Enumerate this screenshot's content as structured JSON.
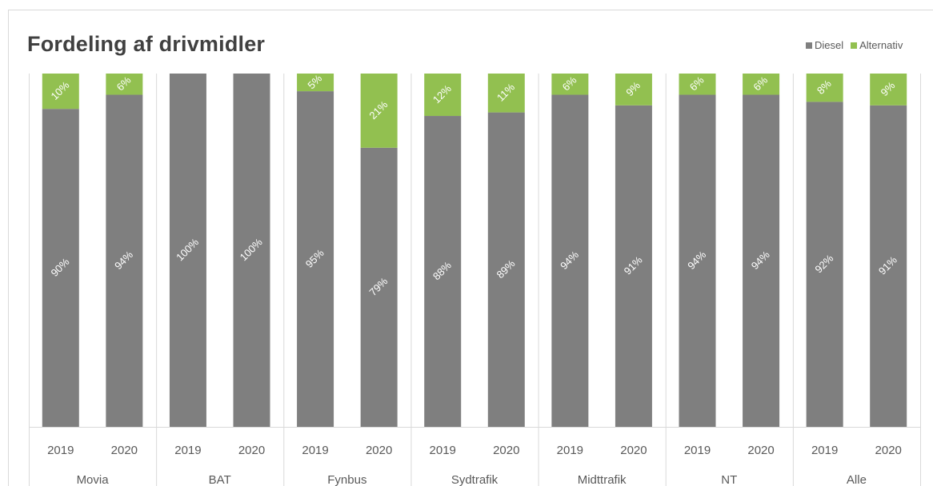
{
  "chart_data": {
    "type": "bar",
    "stacked": true,
    "title": "Fordeling af drivmidler",
    "xlabel": "",
    "ylabel": "",
    "ylim": [
      0,
      100
    ],
    "grid": false,
    "legend_position": "top-right",
    "groups": [
      "Movia",
      "BAT",
      "Fynbus",
      "Sydtrafik",
      "Midttrafik",
      "NT",
      "Alle"
    ],
    "categories": [
      "2019",
      "2020",
      "2019",
      "2020",
      "2019",
      "2020",
      "2019",
      "2020",
      "2019",
      "2020",
      "2019",
      "2020",
      "2019",
      "2020"
    ],
    "series": [
      {
        "name": "Diesel",
        "color": "#7f7f7f",
        "values": [
          90,
          94,
          100,
          100,
          95,
          79,
          88,
          89,
          94,
          91,
          94,
          94,
          92,
          91
        ],
        "labels": [
          "90%",
          "94%",
          "100%",
          "100%",
          "95%",
          "79%",
          "88%",
          "89%",
          "94%",
          "91%",
          "94%",
          "94%",
          "92%",
          "91%"
        ]
      },
      {
        "name": "Alternativ",
        "color": "#92c050",
        "values": [
          10,
          6,
          0,
          0,
          5,
          21,
          12,
          11,
          6,
          9,
          6,
          6,
          8,
          9
        ],
        "labels": [
          "10%",
          "6%",
          "",
          "",
          "5%",
          "21%",
          "12%",
          "11%",
          "6%",
          "9%",
          "6%",
          "6%",
          "8%",
          "9%"
        ]
      }
    ]
  }
}
